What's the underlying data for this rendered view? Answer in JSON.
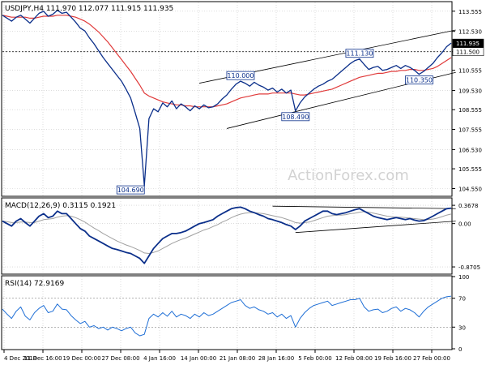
{
  "chart_data": [
    {
      "type": "line",
      "panel": "price",
      "title": "USDJPY,H4  111.970 112.077 111.915 111.935",
      "ylim": [
        104.2,
        114.0
      ],
      "y_ticks": [
        "113.555",
        "112.530",
        "111.500",
        "110.555",
        "109.530",
        "108.555",
        "107.555",
        "106.530",
        "105.555",
        "104.550"
      ],
      "current_price_label": "111.935",
      "reference_level_label": "111.500",
      "reference_level": 111.5,
      "series": [
        {
          "color": "#0b2f8a",
          "values": [
            113.35,
            113.2,
            113.05,
            113.25,
            113.35,
            113.15,
            112.95,
            113.2,
            113.45,
            113.55,
            113.3,
            113.4,
            113.6,
            113.45,
            113.5,
            113.25,
            113.0,
            112.7,
            112.55,
            112.2,
            111.9,
            111.55,
            111.2,
            110.9,
            110.6,
            110.3,
            110.0,
            109.6,
            109.15,
            108.4,
            107.6,
            104.69,
            108.1,
            108.6,
            108.45,
            108.9,
            108.7,
            109.0,
            108.6,
            108.85,
            108.7,
            108.5,
            108.75,
            108.6,
            108.8,
            108.65,
            108.7,
            108.85,
            109.1,
            109.3,
            109.6,
            109.85,
            110.0,
            109.9,
            109.75,
            109.95,
            109.8,
            109.7,
            109.55,
            109.65,
            109.45,
            109.6,
            109.4,
            109.55,
            108.49,
            108.9,
            109.2,
            109.4,
            109.6,
            109.75,
            109.85,
            110.0,
            110.1,
            110.3,
            110.5,
            110.7,
            110.9,
            111.05,
            111.13,
            110.85,
            110.6,
            110.7,
            110.75,
            110.55,
            110.6,
            110.7,
            110.8,
            110.65,
            110.8,
            110.7,
            110.55,
            110.35,
            110.5,
            110.7,
            110.9,
            111.2,
            111.45,
            111.75,
            111.935
          ]
        },
        {
          "color": "#e03a3a",
          "values": [
            113.35,
            113.3,
            113.25,
            113.25,
            113.25,
            113.25,
            113.2,
            113.2,
            113.25,
            113.3,
            113.3,
            113.3,
            113.35,
            113.35,
            113.35,
            113.3,
            113.25,
            113.15,
            113.05,
            112.9,
            112.7,
            112.5,
            112.25,
            112.0,
            111.7,
            111.4,
            111.1,
            110.8,
            110.5,
            110.15,
            109.8,
            109.4,
            109.25,
            109.15,
            109.05,
            108.95,
            108.9,
            108.85,
            108.8,
            108.8,
            108.75,
            108.75,
            108.7,
            108.7,
            108.7,
            108.7,
            108.7,
            108.75,
            108.8,
            108.85,
            108.95,
            109.05,
            109.15,
            109.2,
            109.25,
            109.3,
            109.35,
            109.35,
            109.35,
            109.4,
            109.4,
            109.4,
            109.4,
            109.4,
            109.35,
            109.3,
            109.3,
            109.35,
            109.4,
            109.45,
            109.5,
            109.55,
            109.6,
            109.7,
            109.8,
            109.9,
            110.0,
            110.1,
            110.2,
            110.25,
            110.3,
            110.35,
            110.4,
            110.4,
            110.45,
            110.5,
            110.5,
            110.55,
            110.55,
            110.6,
            110.6,
            110.55,
            110.55,
            110.6,
            110.65,
            110.75,
            110.9,
            111.05,
            111.2
          ]
        }
      ],
      "annotations": [
        {
          "label": "104.690",
          "x_index": 31,
          "value": 104.69
        },
        {
          "label": "110.000",
          "x_index": 52,
          "value": 110.0
        },
        {
          "label": "108.490",
          "x_index": 64,
          "value": 108.49
        },
        {
          "label": "111.130",
          "x_index": 78,
          "value": 111.13
        },
        {
          "label": "110.350",
          "x_index": 91,
          "value": 110.35
        }
      ],
      "channel": {
        "upper": [
          {
            "x_index": 43,
            "value": 109.9
          },
          {
            "x_index": 99,
            "value": 112.6
          }
        ],
        "lower": [
          {
            "x_index": 49,
            "value": 107.6
          },
          {
            "x_index": 99,
            "value": 110.45
          }
        ]
      },
      "watermark": "ActionForex.com"
    },
    {
      "type": "line",
      "panel": "macd",
      "title": "MACD(12,26,9) 0.3115 0.1921",
      "ylim": [
        -1.0,
        0.5
      ],
      "y_ticks": [
        "0.3678",
        "0.00",
        "-0.8705"
      ],
      "series": [
        {
          "color": "#0b2f8a",
          "values": [
            0.05,
            0.0,
            -0.05,
            0.05,
            0.1,
            0.02,
            -0.05,
            0.05,
            0.15,
            0.2,
            0.12,
            0.15,
            0.25,
            0.2,
            0.2,
            0.1,
            0.0,
            -0.1,
            -0.15,
            -0.25,
            -0.3,
            -0.35,
            -0.4,
            -0.45,
            -0.5,
            -0.52,
            -0.55,
            -0.58,
            -0.6,
            -0.65,
            -0.7,
            -0.8,
            -0.65,
            -0.5,
            -0.4,
            -0.3,
            -0.25,
            -0.2,
            -0.2,
            -0.18,
            -0.15,
            -0.1,
            -0.05,
            0.0,
            0.02,
            0.05,
            0.08,
            0.15,
            0.2,
            0.25,
            0.3,
            0.32,
            0.33,
            0.3,
            0.25,
            0.22,
            0.18,
            0.15,
            0.1,
            0.08,
            0.05,
            0.02,
            -0.02,
            -0.05,
            -0.12,
            -0.05,
            0.05,
            0.1,
            0.15,
            0.2,
            0.25,
            0.25,
            0.2,
            0.18,
            0.2,
            0.22,
            0.25,
            0.28,
            0.3,
            0.25,
            0.2,
            0.15,
            0.12,
            0.1,
            0.08,
            0.1,
            0.12,
            0.1,
            0.08,
            0.1,
            0.07,
            0.05,
            0.06,
            0.1,
            0.15,
            0.2,
            0.25,
            0.3,
            0.3115
          ]
        },
        {
          "color": "#a0a0a0",
          "values": [
            0.05,
            0.04,
            0.02,
            0.02,
            0.03,
            0.03,
            0.02,
            0.02,
            0.05,
            0.08,
            0.09,
            0.1,
            0.13,
            0.15,
            0.16,
            0.15,
            0.12,
            0.08,
            0.03,
            -0.03,
            -0.09,
            -0.14,
            -0.2,
            -0.25,
            -0.3,
            -0.35,
            -0.39,
            -0.43,
            -0.46,
            -0.5,
            -0.54,
            -0.59,
            -0.6,
            -0.58,
            -0.55,
            -0.5,
            -0.45,
            -0.4,
            -0.36,
            -0.32,
            -0.29,
            -0.25,
            -0.21,
            -0.17,
            -0.13,
            -0.1,
            -0.06,
            -0.02,
            0.03,
            0.07,
            0.12,
            0.16,
            0.19,
            0.21,
            0.22,
            0.22,
            0.21,
            0.2,
            0.18,
            0.16,
            0.14,
            0.12,
            0.09,
            0.06,
            0.02,
            0.01,
            0.02,
            0.03,
            0.06,
            0.09,
            0.12,
            0.15,
            0.16,
            0.17,
            0.17,
            0.18,
            0.2,
            0.21,
            0.23,
            0.24,
            0.23,
            0.21,
            0.19,
            0.17,
            0.15,
            0.14,
            0.13,
            0.13,
            0.12,
            0.11,
            0.1,
            0.09,
            0.08,
            0.08,
            0.09,
            0.11,
            0.14,
            0.17,
            0.1921
          ]
        }
      ],
      "trendlines": [
        {
          "from": {
            "x_index": 59,
            "value": 0.35
          },
          "to": {
            "x_index": 99,
            "value": 0.3
          }
        },
        {
          "from": {
            "x_index": 64,
            "value": -0.18
          },
          "to": {
            "x_index": 99,
            "value": 0.05
          }
        }
      ]
    },
    {
      "type": "line",
      "panel": "rsi",
      "title": "RSI(14) 72.9169",
      "ylim": [
        0,
        100
      ],
      "y_ticks": [
        "100",
        "70",
        "30",
        "0"
      ],
      "levels": [
        70,
        30
      ],
      "series": [
        {
          "color": "#1f6fd6",
          "values": [
            55,
            48,
            42,
            52,
            58,
            45,
            40,
            50,
            56,
            60,
            50,
            52,
            62,
            55,
            54,
            46,
            40,
            35,
            38,
            30,
            32,
            28,
            30,
            26,
            30,
            28,
            25,
            28,
            30,
            22,
            18,
            20,
            42,
            48,
            44,
            50,
            45,
            52,
            44,
            48,
            46,
            42,
            48,
            44,
            50,
            46,
            48,
            52,
            56,
            60,
            64,
            66,
            68,
            60,
            56,
            58,
            54,
            52,
            48,
            50,
            44,
            48,
            42,
            46,
            30,
            42,
            50,
            56,
            60,
            62,
            64,
            66,
            60,
            62,
            64,
            66,
            68,
            68,
            70,
            58,
            52,
            54,
            55,
            50,
            52,
            56,
            58,
            52,
            56,
            54,
            50,
            44,
            52,
            58,
            62,
            66,
            70,
            72,
            72.9169
          ]
        }
      ]
    }
  ],
  "x_axis": {
    "tick_labels": [
      "4 Dec 2018",
      "11 Dec 16:00",
      "19 Dec 00:00",
      "27 Dec 08:00",
      "4 Jan 16:00",
      "14 Jan 00:00",
      "21 Jan 08:00",
      "28 Jan 16:00",
      "5 Feb 00:00",
      "12 Feb 08:00",
      "19 Feb 16:00",
      "27 Feb 00:00"
    ]
  },
  "colors": {
    "price": "#0b2f8a",
    "ma": "#e03a3a",
    "macd": "#0b2f8a",
    "signal": "#a0a0a0",
    "rsi": "#1f6fd6",
    "grid": "#c8c8c8",
    "frame": "#000000",
    "watermark": "#d2d2d2"
  }
}
